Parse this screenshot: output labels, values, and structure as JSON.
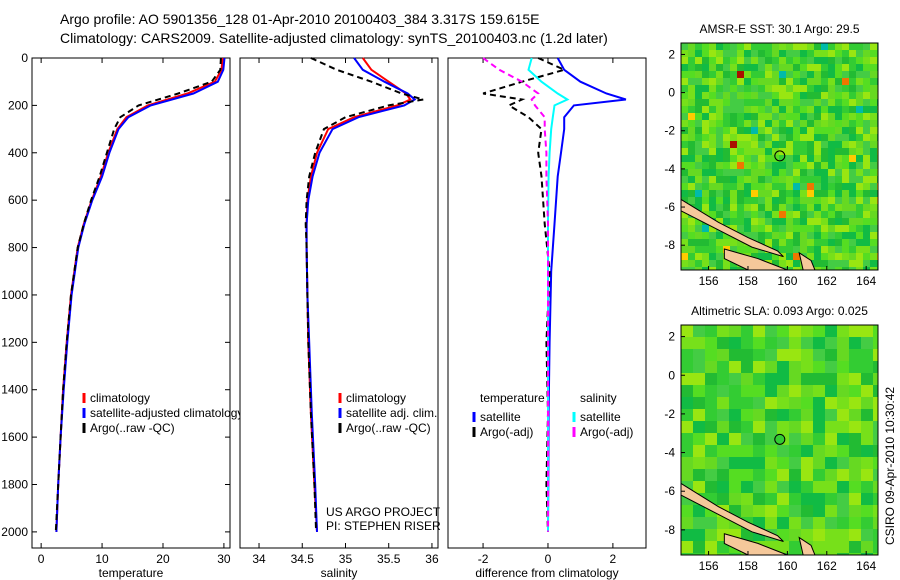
{
  "title_lines": [
    "Argo profile: AO 5901356_128 01-Apr-2010 20100403_384 3.317S 159.615E",
    "Climatology: CARS2009. Satellite-adjusted climatology: synTS_20100403.nc (1.2d later)"
  ],
  "side_label": "CSIRO 09-Apr-2010 10:30:42",
  "colors": {
    "clim": "#ff0000",
    "sat": "#0000ff",
    "argo": "#000000",
    "sal_sat": "#00ffff",
    "sal_argo": "#ff00ff"
  },
  "chart_data": [
    {
      "type": "line",
      "id": "temperature",
      "xlabel": "temperature",
      "xlim": [
        -1.5,
        31
      ],
      "ylim": [
        0,
        2068
      ],
      "xticks": [
        0,
        10,
        20,
        30
      ],
      "yticks": [
        0,
        200,
        400,
        600,
        800,
        1000,
        1200,
        1400,
        1600,
        1800,
        2000
      ],
      "depth": [
        0,
        50,
        100,
        150,
        200,
        250,
        300,
        400,
        500,
        600,
        700,
        800,
        1000,
        1200,
        1400,
        1600,
        1800,
        2000
      ],
      "series": [
        {
          "name": "climatology",
          "color": "#ff0000",
          "values": [
            29.8,
            29.6,
            28.5,
            24,
            17.5,
            14,
            12.5,
            11,
            9.8,
            8.3,
            7,
            6,
            4.9,
            4.2,
            3.6,
            3.2,
            2.8,
            2.5
          ]
        },
        {
          "name": "satellite-adjusted climatology",
          "color": "#0000ff",
          "values": [
            30.1,
            29.9,
            29,
            25,
            18,
            14.3,
            12.7,
            11.2,
            10,
            8.4,
            7.1,
            6.1,
            5,
            4.3,
            3.7,
            3.2,
            2.8,
            2.5
          ]
        },
        {
          "name": "Argo(..raw -QC)",
          "color": "#000000",
          "dash": true,
          "values": [
            29.5,
            29.4,
            28,
            22.5,
            16,
            13,
            12,
            10.8,
            9.6,
            8.2,
            7,
            6,
            4.9,
            4.2,
            3.6,
            3.2,
            2.8,
            2.4
          ]
        }
      ],
      "legend": [
        "climatology",
        "satellite-adjusted climatology",
        "Argo(..raw -QC)"
      ]
    },
    {
      "type": "line",
      "id": "salinity",
      "xlabel": "salinity",
      "xlim": [
        33.78,
        36.07
      ],
      "ylim": [
        0,
        2068
      ],
      "xticks": [
        34,
        34.5,
        35,
        35.5,
        36
      ],
      "yticks": [],
      "depth": [
        0,
        50,
        100,
        150,
        175,
        200,
        250,
        300,
        400,
        500,
        600,
        700,
        800,
        1000,
        1200,
        1500,
        1800,
        2000
      ],
      "series": [
        {
          "name": "climatology",
          "color": "#ff0000",
          "values": [
            35.2,
            35.3,
            35.5,
            35.7,
            35.75,
            35.6,
            35.1,
            34.8,
            34.67,
            34.6,
            34.56,
            34.55,
            34.55,
            34.56,
            34.57,
            34.6,
            34.64,
            34.67
          ]
        },
        {
          "name": "satellite adj. clim.",
          "color": "#0000ff",
          "values": [
            35.1,
            35.2,
            35.45,
            35.72,
            35.8,
            35.68,
            35.15,
            34.85,
            34.7,
            34.62,
            34.57,
            34.55,
            34.55,
            34.56,
            34.58,
            34.61,
            34.65,
            34.67
          ]
        },
        {
          "name": "Argo(..raw -QC)",
          "color": "#000000",
          "dash": true,
          "values": [
            34.6,
            34.9,
            35.3,
            35.65,
            35.9,
            35.5,
            35.0,
            34.75,
            34.65,
            34.58,
            34.55,
            34.54,
            34.55,
            34.56,
            34.57,
            34.6,
            34.64,
            34.66
          ]
        }
      ],
      "legend": [
        "climatology",
        "satellite adj. clim.",
        "Argo(..raw -QC)"
      ],
      "annotation": [
        "US ARGO PROJECT",
        "PI: STEPHEN RISER"
      ]
    },
    {
      "type": "line",
      "id": "difference",
      "xlabel": "difference from climatology",
      "xlim": [
        -3.08,
        3.02
      ],
      "ylim": [
        0,
        2068
      ],
      "xticks": [
        -2,
        0,
        2
      ],
      "yticks": [],
      "depth": [
        0,
        50,
        100,
        150,
        175,
        200,
        250,
        300,
        400,
        500,
        700,
        900,
        1200,
        1500,
        1800,
        2000
      ],
      "series": [
        {
          "name": "temperature satellite",
          "color": "#0000ff",
          "values": [
            0.3,
            0.5,
            1,
            1.8,
            2.4,
            0.8,
            0.5,
            0.5,
            0.4,
            0.3,
            0.2,
            0.1,
            0.05,
            0.02,
            0.01,
            0
          ]
        },
        {
          "name": "temperature Argo(-adj)",
          "color": "#000000",
          "dash": true,
          "values": [
            -0.3,
            0.5,
            -0.8,
            -2,
            -0.8,
            -1.2,
            -0.6,
            -0.2,
            -0.3,
            -0.2,
            -0.1,
            0.05,
            -0.05,
            0,
            -0.05,
            0
          ]
        },
        {
          "name": "salinity satellite",
          "color": "#00ffff",
          "values": [
            -0.5,
            -0.6,
            -0.2,
            0.3,
            0.6,
            0.2,
            0.15,
            0.1,
            0.05,
            0.02,
            0,
            0,
            0,
            0,
            0,
            0
          ]
        },
        {
          "name": "salinity Argo(-adj)",
          "color": "#ff00ff",
          "dash": true,
          "values": [
            -2,
            -1.5,
            -0.8,
            -0.3,
            -0.5,
            -0.4,
            -0.1,
            -0.1,
            -0.05,
            -0.05,
            0,
            0,
            0,
            0,
            0,
            0
          ]
        }
      ],
      "legend_headers": [
        "temperature",
        "salinity"
      ],
      "legend": [
        "satellite",
        "Argo(-adj)",
        "satellite",
        "Argo(-adj)"
      ]
    }
  ],
  "maps": [
    {
      "title": "AMSR-E SST: 30.1 Argo: 29.5",
      "lon": [
        154.6,
        164.6
      ],
      "lat": [
        -9.3,
        2.6
      ],
      "xticks": [
        156,
        158,
        160,
        162,
        164
      ],
      "yticks": [
        2,
        0,
        -2,
        -4,
        -6,
        -8
      ],
      "argo": [
        159.615,
        -3.317
      ],
      "marker_fill": "none"
    },
    {
      "title": "Altimetric SLA: 0.093 Argo: 0.025",
      "lon": [
        154.6,
        164.6
      ],
      "lat": [
        -9.3,
        2.6
      ],
      "xticks": [
        156,
        158,
        160,
        162,
        164
      ],
      "yticks": [
        2,
        0,
        -2,
        -4,
        -6,
        -8
      ],
      "argo": [
        159.615,
        -3.317
      ],
      "marker_fill": "#33cc33"
    }
  ]
}
